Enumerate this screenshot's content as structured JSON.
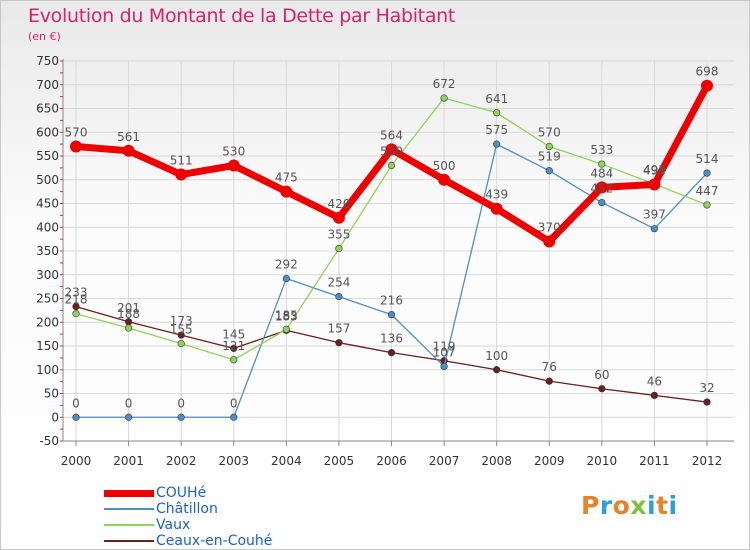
{
  "title": "Evolution du Montant de la Dette par Habitant",
  "subtitle": "(en €)",
  "brand": "Proxiti",
  "colors": {
    "title": "#d6226b",
    "axis_text": "#333333",
    "grid": "#d8d8d8",
    "legend_text": "#1a5fd0",
    "brand_letters": [
      "#e8832a",
      "#2aa1d6",
      "#e8832a",
      "#7fc241",
      "#2aa1d6",
      "#e8832a",
      "#2aa1d6"
    ]
  },
  "chart_data": {
    "type": "line",
    "title": "Evolution du Montant de la Dette par Habitant",
    "subtitle": "(en €)",
    "xlabel": "",
    "ylabel": "",
    "x": [
      "2000",
      "2001",
      "2002",
      "2003",
      "2004",
      "2005",
      "2006",
      "2007",
      "2008",
      "2009",
      "2010",
      "2011",
      "2012"
    ],
    "ylim": [
      -50,
      750
    ],
    "yticks": [
      -50,
      0,
      50,
      100,
      150,
      200,
      250,
      300,
      350,
      400,
      450,
      500,
      550,
      600,
      650,
      700,
      750
    ],
    "grid": true,
    "legend_position": "bottom-left",
    "series": [
      {
        "name": "COUHé",
        "color": "#ee0000",
        "values": [
          570,
          561,
          511,
          530,
          475,
          420,
          564,
          500,
          439,
          370,
          484,
          490,
          698
        ],
        "labels": [
          "570",
          "561",
          "511",
          "530",
          "475",
          "420",
          "564",
          "500",
          "439",
          "370",
          "484",
          "490",
          "698"
        ]
      },
      {
        "name": "Châtillon",
        "color": "#4d8fc8",
        "values": [
          0,
          0,
          0,
          0,
          292,
          254,
          216,
          107,
          575,
          519,
          452,
          397,
          514
        ],
        "labels": [
          "0",
          "0",
          "0",
          "0",
          "292",
          "254",
          "216",
          "107",
          "575",
          "519",
          "452",
          "397",
          "514"
        ]
      },
      {
        "name": "Vaux",
        "color": "#8fd45a",
        "values": [
          218,
          188,
          155,
          121,
          185,
          355,
          530,
          672,
          641,
          570,
          533,
          491,
          447
        ],
        "labels": [
          "218",
          "188",
          "155",
          "121",
          "185",
          "355",
          "530",
          "672",
          "641",
          "570",
          "533",
          "491",
          "447"
        ]
      },
      {
        "name": "Ceaux-en-Couhé",
        "color": "#6b1f1f",
        "values": [
          233,
          201,
          173,
          145,
          183,
          157,
          136,
          119,
          100,
          76,
          60,
          46,
          32
        ],
        "labels": [
          "233",
          "201",
          "173",
          "145",
          "183",
          "157",
          "136",
          "119",
          "100",
          "76",
          "60",
          "46",
          "32"
        ]
      }
    ]
  }
}
